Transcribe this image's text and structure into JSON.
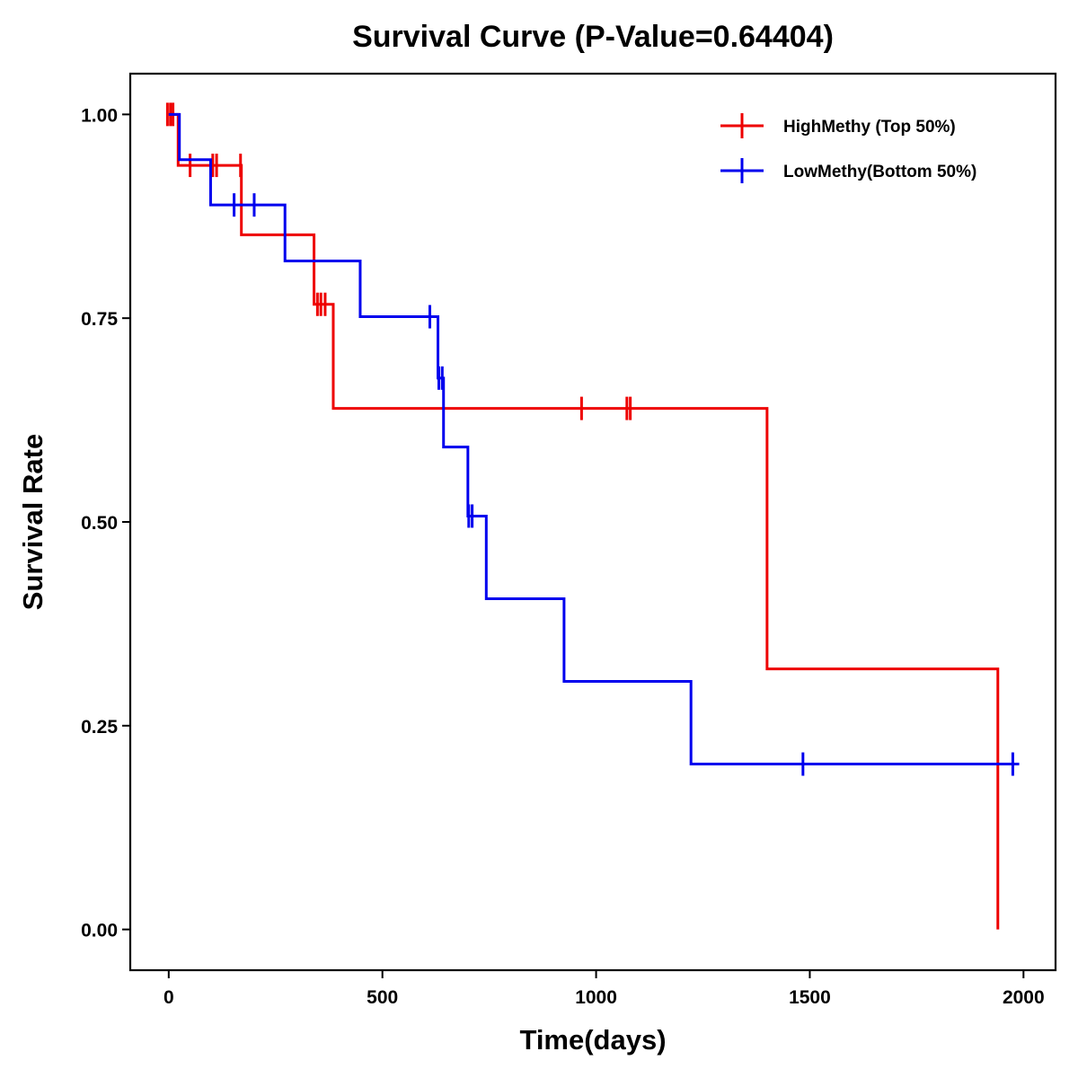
{
  "chart_data": {
    "type": "line",
    "subtype": "kaplan-meier-step",
    "title": "Survival Curve (P-Value=0.64404)",
    "xlabel": "Time(days)",
    "ylabel": "Survival Rate",
    "xlim": [
      -90,
      2075
    ],
    "ylim": [
      -0.05,
      1.05
    ],
    "xticks": [
      0,
      500,
      1000,
      1500,
      2000
    ],
    "xtick_labels": [
      "0",
      "500",
      "1000",
      "1500",
      "2000"
    ],
    "yticks": [
      0,
      0.25,
      0.5,
      0.75,
      1.0
    ],
    "ytick_labels": [
      "0.00",
      "0.25",
      "0.50",
      "0.75",
      "1.00"
    ],
    "grid": false,
    "legend_position": "top-right",
    "series": [
      {
        "name": "HighMethy (Top 50%)",
        "color": "#ee0000",
        "steps": [
          [
            0,
            1.0
          ],
          [
            22,
            0.9375
          ],
          [
            170,
            0.8523
          ],
          [
            340,
            0.767
          ],
          [
            385,
            0.6393
          ],
          [
            1400,
            0.3196
          ],
          [
            1940,
            0.0
          ],
          [
            1940,
            0.0
          ]
        ],
        "censored": [
          [
            -3,
            1.0
          ],
          [
            4,
            1.0
          ],
          [
            10,
            1.0
          ],
          [
            50,
            0.9375
          ],
          [
            103,
            0.9375
          ],
          [
            112,
            0.9375
          ],
          [
            168,
            0.9375
          ],
          [
            348,
            0.767
          ],
          [
            356,
            0.767
          ],
          [
            366,
            0.767
          ],
          [
            966,
            0.6393
          ],
          [
            1072,
            0.6393
          ],
          [
            1080,
            0.6393
          ]
        ]
      },
      {
        "name": "LowMethy(Bottom 50%)",
        "color": "#0000ee",
        "steps": [
          [
            0,
            1.0
          ],
          [
            25,
            0.9444
          ],
          [
            98,
            0.8889
          ],
          [
            272,
            0.8202
          ],
          [
            448,
            0.7518
          ],
          [
            630,
            0.6765
          ],
          [
            643,
            0.5919
          ],
          [
            700,
            0.5072
          ],
          [
            743,
            0.4058
          ],
          [
            925,
            0.3043
          ],
          [
            1222,
            0.2029
          ],
          [
            1990,
            0.2029
          ]
        ],
        "censored": [
          [
            153,
            0.8889
          ],
          [
            200,
            0.8889
          ],
          [
            611,
            0.7518
          ],
          [
            632,
            0.6765
          ],
          [
            640,
            0.6765
          ],
          [
            702,
            0.5072
          ],
          [
            710,
            0.5072
          ],
          [
            1484,
            0.2029
          ],
          [
            1975,
            0.2029
          ]
        ]
      }
    ]
  }
}
